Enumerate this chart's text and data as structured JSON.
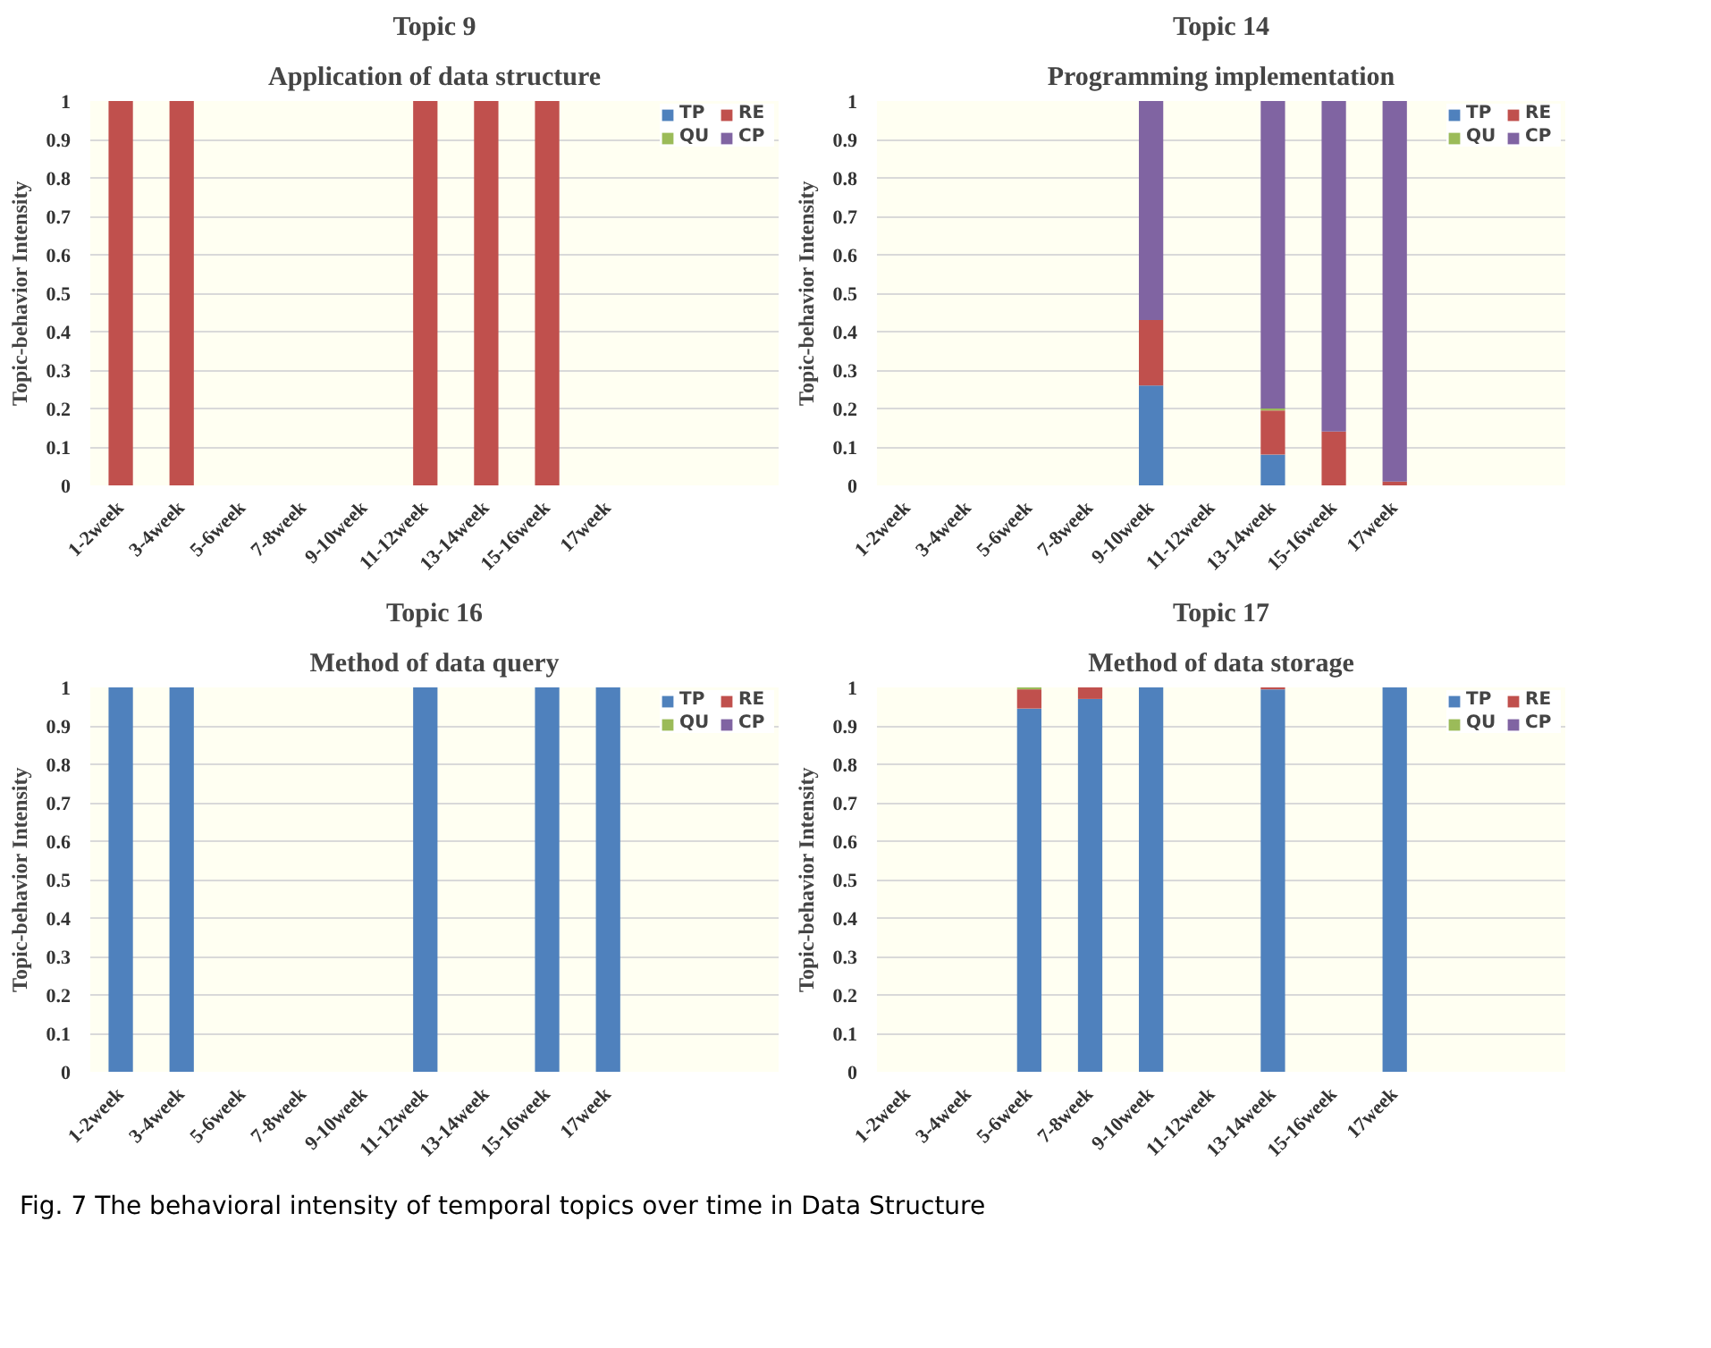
{
  "chart_data": [
    {
      "type": "bar",
      "stacked": true,
      "title": "Topic 9",
      "subtitle": "Application of data structure",
      "ylabel": "Topic-behavior Intensity",
      "categories": [
        "1-2week",
        "3-4week",
        "5-6week",
        "7-8week",
        "9-10week",
        "11-12week",
        "13-14week",
        "15-16week",
        "17week"
      ],
      "ylim": [
        0,
        1
      ],
      "yticks": [
        0,
        0.1,
        0.2,
        0.3,
        0.4,
        0.5,
        0.6,
        0.7,
        0.8,
        0.9,
        1
      ],
      "grid": "y",
      "legend": "top right",
      "series": [
        {
          "name": "TP",
          "color": "#4f81bd",
          "values": [
            0,
            0,
            0,
            0,
            0,
            0,
            0,
            0,
            0
          ]
        },
        {
          "name": "RE",
          "color": "#c0504d",
          "values": [
            1,
            1,
            0,
            0,
            0,
            1,
            1,
            1,
            0
          ]
        },
        {
          "name": "QU",
          "color": "#9bbb59",
          "values": [
            0,
            0,
            0,
            0,
            0,
            0,
            0,
            0,
            0
          ]
        },
        {
          "name": "CP",
          "color": "#8064a2",
          "values": [
            0,
            0,
            0,
            0,
            0,
            0,
            0,
            0,
            0
          ]
        }
      ]
    },
    {
      "type": "bar",
      "stacked": true,
      "title": "Topic 14",
      "subtitle": "Programming implementation",
      "ylabel": "Topic-behavior Intensity",
      "categories": [
        "1-2week",
        "3-4week",
        "5-6week",
        "7-8week",
        "9-10week",
        "11-12week",
        "13-14week",
        "15-16week",
        "17week"
      ],
      "ylim": [
        0,
        1
      ],
      "yticks": [
        0,
        0.1,
        0.2,
        0.3,
        0.4,
        0.5,
        0.6,
        0.7,
        0.8,
        0.9,
        1
      ],
      "grid": "y",
      "legend": "top right",
      "series": [
        {
          "name": "TP",
          "color": "#4f81bd",
          "values": [
            0,
            0,
            0,
            0,
            0.26,
            0,
            0.08,
            0,
            0
          ]
        },
        {
          "name": "RE",
          "color": "#c0504d",
          "values": [
            0,
            0,
            0,
            0,
            0.17,
            0,
            0.115,
            0.14,
            0.01
          ]
        },
        {
          "name": "QU",
          "color": "#9bbb59",
          "values": [
            0,
            0,
            0,
            0,
            0,
            0,
            0.005,
            0,
            0
          ]
        },
        {
          "name": "CP",
          "color": "#8064a2",
          "values": [
            0,
            0,
            0,
            0,
            0.57,
            0,
            0.8,
            0.86,
            0.99
          ]
        }
      ]
    },
    {
      "type": "bar",
      "stacked": true,
      "title": "Topic 16",
      "subtitle": "Method of data query",
      "ylabel": "Topic-behavior Intensity",
      "categories": [
        "1-2week",
        "3-4week",
        "5-6week",
        "7-8week",
        "9-10week",
        "11-12week",
        "13-14week",
        "15-16week",
        "17week"
      ],
      "ylim": [
        0,
        1
      ],
      "yticks": [
        0,
        0.1,
        0.2,
        0.3,
        0.4,
        0.5,
        0.6,
        0.7,
        0.8,
        0.9,
        1
      ],
      "grid": "y",
      "legend": "top right",
      "series": [
        {
          "name": "TP",
          "color": "#4f81bd",
          "values": [
            1,
            1,
            0,
            0,
            0,
            1,
            0,
            1,
            1
          ]
        },
        {
          "name": "RE",
          "color": "#c0504d",
          "values": [
            0,
            0,
            0,
            0,
            0,
            0,
            0,
            0,
            0
          ]
        },
        {
          "name": "QU",
          "color": "#9bbb59",
          "values": [
            0,
            0,
            0,
            0,
            0,
            0,
            0,
            0,
            0
          ]
        },
        {
          "name": "CP",
          "color": "#8064a2",
          "values": [
            0,
            0,
            0,
            0,
            0,
            0,
            0,
            0,
            0
          ]
        }
      ]
    },
    {
      "type": "bar",
      "stacked": true,
      "title": "Topic 17",
      "subtitle": "Method of data storage",
      "ylabel": "Topic-behavior Intensity",
      "categories": [
        "1-2week",
        "3-4week",
        "5-6week",
        "7-8week",
        "9-10week",
        "11-12week",
        "13-14week",
        "15-16week",
        "17week"
      ],
      "ylim": [
        0,
        1
      ],
      "yticks": [
        0,
        0.1,
        0.2,
        0.3,
        0.4,
        0.5,
        0.6,
        0.7,
        0.8,
        0.9,
        1
      ],
      "grid": "y",
      "legend": "top right",
      "annotations": [
        "Fig. 7 The behavioral intensity of temporal topics over time in Data Structure"
      ],
      "series": [
        {
          "name": "TP",
          "color": "#4f81bd",
          "values": [
            0,
            0,
            0.945,
            0.97,
            1,
            0,
            0.995,
            0,
            1
          ]
        },
        {
          "name": "RE",
          "color": "#c0504d",
          "values": [
            0,
            0,
            0.05,
            0.03,
            0,
            0,
            0.005,
            0,
            0
          ]
        },
        {
          "name": "QU",
          "color": "#9bbb59",
          "values": [
            0,
            0,
            0.005,
            0,
            0,
            0,
            0,
            0,
            0
          ]
        },
        {
          "name": "CP",
          "color": "#8064a2",
          "values": [
            0,
            0,
            0,
            0,
            0,
            0,
            0,
            0,
            0
          ]
        }
      ]
    }
  ]
}
